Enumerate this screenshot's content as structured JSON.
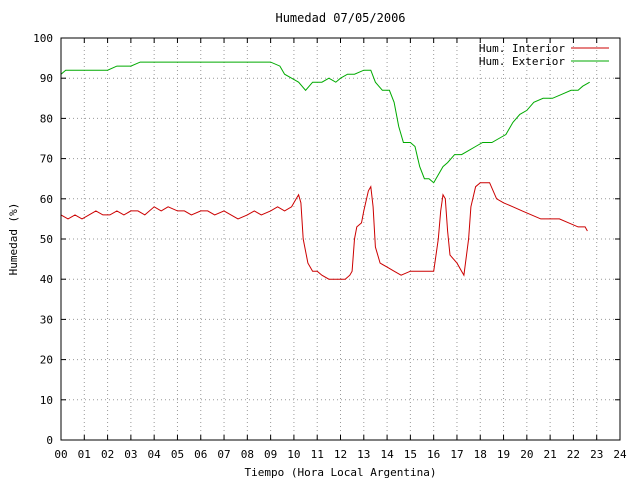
{
  "chart_data": {
    "type": "line",
    "title": "Humedad 07/05/2006",
    "xlabel": "Tiempo (Hora Local Argentina)",
    "ylabel": "Humedad (%)",
    "xlim": [
      0,
      24
    ],
    "ylim": [
      0,
      100
    ],
    "grid": true,
    "legend_position": "top-right",
    "x_ticks": [
      "00",
      "01",
      "02",
      "03",
      "04",
      "05",
      "06",
      "07",
      "08",
      "09",
      "10",
      "11",
      "12",
      "13",
      "14",
      "15",
      "16",
      "17",
      "18",
      "19",
      "20",
      "21",
      "22",
      "23",
      "24"
    ],
    "y_ticks": [
      "0",
      "10",
      "20",
      "30",
      "40",
      "50",
      "60",
      "70",
      "80",
      "90",
      "100"
    ],
    "series": [
      {
        "name": "Hum. Interior",
        "color": "#cc0000",
        "points": [
          [
            0.0,
            56
          ],
          [
            0.3,
            55
          ],
          [
            0.6,
            56
          ],
          [
            0.9,
            55
          ],
          [
            1.2,
            56
          ],
          [
            1.5,
            57
          ],
          [
            1.8,
            56
          ],
          [
            2.1,
            56
          ],
          [
            2.4,
            57
          ],
          [
            2.7,
            56
          ],
          [
            3.0,
            57
          ],
          [
            3.3,
            57
          ],
          [
            3.6,
            56
          ],
          [
            4.0,
            58
          ],
          [
            4.3,
            57
          ],
          [
            4.6,
            58
          ],
          [
            5.0,
            57
          ],
          [
            5.3,
            57
          ],
          [
            5.6,
            56
          ],
          [
            6.0,
            57
          ],
          [
            6.3,
            57
          ],
          [
            6.6,
            56
          ],
          [
            7.0,
            57
          ],
          [
            7.3,
            56
          ],
          [
            7.6,
            55
          ],
          [
            8.0,
            56
          ],
          [
            8.3,
            57
          ],
          [
            8.6,
            56
          ],
          [
            9.0,
            57
          ],
          [
            9.3,
            58
          ],
          [
            9.6,
            57
          ],
          [
            9.9,
            58
          ],
          [
            10.1,
            60
          ],
          [
            10.2,
            61
          ],
          [
            10.3,
            59
          ],
          [
            10.4,
            50
          ],
          [
            10.6,
            44
          ],
          [
            10.8,
            42
          ],
          [
            11.0,
            42
          ],
          [
            11.2,
            41
          ],
          [
            11.5,
            40
          ],
          [
            11.8,
            40
          ],
          [
            12.0,
            40
          ],
          [
            12.2,
            40
          ],
          [
            12.4,
            41
          ],
          [
            12.5,
            42
          ],
          [
            12.6,
            50
          ],
          [
            12.7,
            53
          ],
          [
            12.9,
            54
          ],
          [
            13.0,
            57
          ],
          [
            13.2,
            62
          ],
          [
            13.3,
            63
          ],
          [
            13.4,
            58
          ],
          [
            13.5,
            48
          ],
          [
            13.7,
            44
          ],
          [
            14.0,
            43
          ],
          [
            14.3,
            42
          ],
          [
            14.6,
            41
          ],
          [
            15.0,
            42
          ],
          [
            15.4,
            42
          ],
          [
            15.7,
            42
          ],
          [
            16.0,
            42
          ],
          [
            16.2,
            50
          ],
          [
            16.3,
            57
          ],
          [
            16.4,
            61
          ],
          [
            16.5,
            60
          ],
          [
            16.6,
            52
          ],
          [
            16.7,
            46
          ],
          [
            17.0,
            44
          ],
          [
            17.2,
            42
          ],
          [
            17.3,
            41
          ],
          [
            17.5,
            50
          ],
          [
            17.6,
            58
          ],
          [
            17.8,
            63
          ],
          [
            18.0,
            64
          ],
          [
            18.4,
            64
          ],
          [
            18.7,
            60
          ],
          [
            19.0,
            59
          ],
          [
            19.4,
            58
          ],
          [
            19.8,
            57
          ],
          [
            20.2,
            56
          ],
          [
            20.6,
            55
          ],
          [
            21.0,
            55
          ],
          [
            21.4,
            55
          ],
          [
            21.8,
            54
          ],
          [
            22.2,
            53
          ],
          [
            22.5,
            53
          ],
          [
            22.6,
            52
          ]
        ]
      },
      {
        "name": "Hum. Exterior",
        "color": "#00aa00",
        "points": [
          [
            0.0,
            91
          ],
          [
            0.2,
            92
          ],
          [
            1.0,
            92
          ],
          [
            2.0,
            92
          ],
          [
            2.4,
            93
          ],
          [
            3.0,
            93
          ],
          [
            3.4,
            94
          ],
          [
            4.0,
            94
          ],
          [
            5.0,
            94
          ],
          [
            6.0,
            94
          ],
          [
            7.0,
            94
          ],
          [
            8.0,
            94
          ],
          [
            9.0,
            94
          ],
          [
            9.4,
            93
          ],
          [
            9.6,
            91
          ],
          [
            9.9,
            90
          ],
          [
            10.2,
            89
          ],
          [
            10.5,
            87
          ],
          [
            10.8,
            89
          ],
          [
            11.2,
            89
          ],
          [
            11.5,
            90
          ],
          [
            11.8,
            89
          ],
          [
            12.0,
            90
          ],
          [
            12.3,
            91
          ],
          [
            12.6,
            91
          ],
          [
            13.0,
            92
          ],
          [
            13.3,
            92
          ],
          [
            13.5,
            89
          ],
          [
            13.8,
            87
          ],
          [
            14.1,
            87
          ],
          [
            14.3,
            84
          ],
          [
            14.5,
            78
          ],
          [
            14.7,
            74
          ],
          [
            15.0,
            74
          ],
          [
            15.2,
            73
          ],
          [
            15.4,
            68
          ],
          [
            15.6,
            65
          ],
          [
            15.8,
            65
          ],
          [
            16.0,
            64
          ],
          [
            16.2,
            66
          ],
          [
            16.4,
            68
          ],
          [
            16.6,
            69
          ],
          [
            16.9,
            71
          ],
          [
            17.2,
            71
          ],
          [
            17.5,
            72
          ],
          [
            17.8,
            73
          ],
          [
            18.1,
            74
          ],
          [
            18.5,
            74
          ],
          [
            18.8,
            75
          ],
          [
            19.1,
            76
          ],
          [
            19.4,
            79
          ],
          [
            19.7,
            81
          ],
          [
            20.0,
            82
          ],
          [
            20.3,
            84
          ],
          [
            20.7,
            85
          ],
          [
            21.1,
            85
          ],
          [
            21.5,
            86
          ],
          [
            21.9,
            87
          ],
          [
            22.2,
            87
          ],
          [
            22.4,
            88
          ],
          [
            22.7,
            89
          ]
        ]
      }
    ]
  }
}
